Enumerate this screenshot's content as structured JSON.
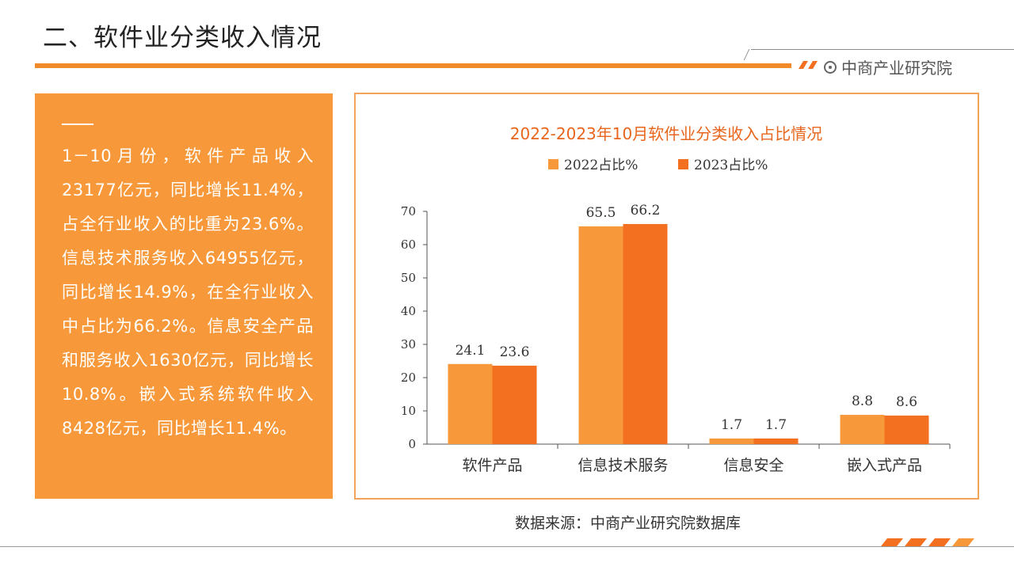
{
  "header": {
    "title": "二、软件业分类收入情况",
    "brand": "中商产业研究院"
  },
  "summary": {
    "text": "1－10月份，软件产品收入23177亿元，同比增长11.4%，占全行业收入的比重为23.6%。信息技术服务收入64955亿元，同比增长14.9%，在全行业收入中占比为66.2%。信息安全产品和服务收入1630亿元，同比增长10.8%。嵌入式系统软件收入8428亿元，同比增长11.4%。"
  },
  "chart_data": {
    "type": "bar",
    "title": "2022-2023年10月软件业分类收入占比情况",
    "categories": [
      "软件产品",
      "信息技术服务",
      "信息安全",
      "嵌入式产品"
    ],
    "series": [
      {
        "name": "2022占比%",
        "values": [
          24.1,
          65.5,
          1.7,
          8.8
        ],
        "color": "#f7993a"
      },
      {
        "name": "2023占比%",
        "values": [
          23.6,
          66.2,
          1.7,
          8.6
        ],
        "color": "#f37021"
      }
    ],
    "ylim": [
      0,
      70
    ],
    "yticks": [
      0,
      10,
      20,
      30,
      40,
      50,
      60,
      70
    ],
    "legend": "top-center",
    "grid": false
  },
  "source": "数据来源：中商产业研究院数据库",
  "colors": {
    "accent": "#f08a2a",
    "summary_bg": "#f7993a",
    "chart_title": "#e8661c"
  }
}
